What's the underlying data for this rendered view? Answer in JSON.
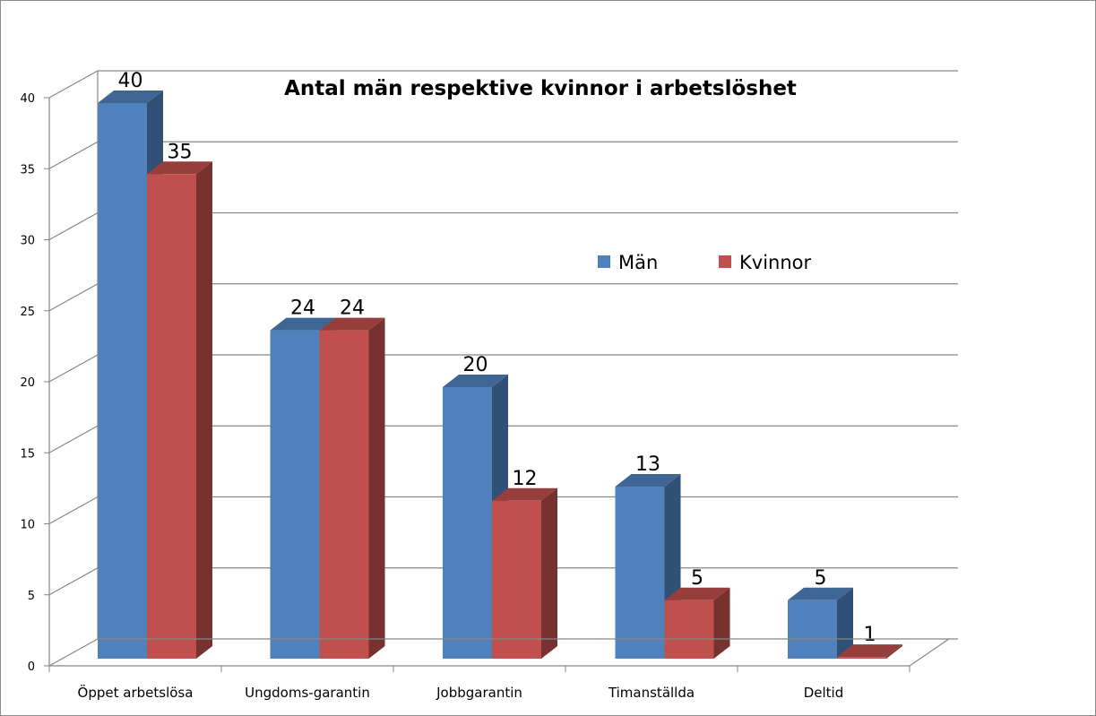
{
  "chart_data": {
    "type": "bar",
    "title": "Antal män respektive kvinnor i arbetslöshet",
    "categories": [
      "Öppet arbetslösa",
      "Ungdoms-garantin",
      "Jobbgarantin",
      "Timanställda",
      "Deltid"
    ],
    "series": [
      {
        "name": "Män",
        "color": "#4f81bd",
        "values": [
          40,
          24,
          20,
          13,
          5
        ]
      },
      {
        "name": "Kvinnor",
        "color": "#c0504d",
        "values": [
          35,
          24,
          12,
          5,
          1
        ]
      }
    ],
    "ylim": [
      0,
      40
    ],
    "yticks": [
      0,
      5,
      10,
      15,
      20,
      25,
      30,
      35,
      40
    ],
    "grid": true,
    "legend_position": "right",
    "style": "3d-column"
  }
}
